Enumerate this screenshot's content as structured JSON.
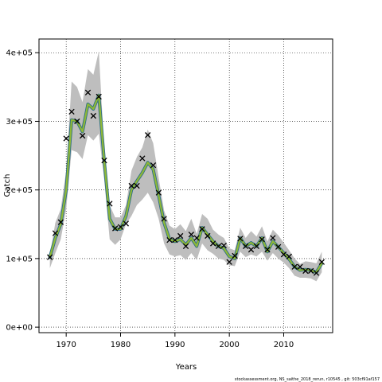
{
  "chart_data": {
    "type": "line",
    "title": "",
    "xlabel": "Years",
    "ylabel": "Catch",
    "xlim": [
      1965,
      2019
    ],
    "ylim": [
      -8000,
      420000
    ],
    "x_ticks": [
      1970,
      1980,
      1990,
      2000,
      2010
    ],
    "x_tick_labels": [
      "1970",
      "1980",
      "1990",
      "2000",
      "2010"
    ],
    "y_ticks": [
      0,
      100000,
      200000,
      300000,
      400000
    ],
    "y_tick_labels": [
      "0e+00",
      "1e+05",
      "2e+05",
      "3e+05",
      "4e+05"
    ],
    "grid": true,
    "years": [
      1967,
      1968,
      1969,
      1970,
      1971,
      1972,
      1973,
      1974,
      1975,
      1976,
      1977,
      1978,
      1979,
      1980,
      1981,
      1982,
      1983,
      1984,
      1985,
      1986,
      1987,
      1988,
      1989,
      1990,
      1991,
      1992,
      1993,
      1994,
      1995,
      1996,
      1997,
      1998,
      1999,
      2000,
      2001,
      2002,
      2003,
      2004,
      2005,
      2006,
      2007,
      2008,
      2009,
      2010,
      2011,
      2012,
      2013,
      2014,
      2015,
      2016,
      2017
    ],
    "series": [
      {
        "type": "band",
        "color": "#bebebe",
        "upper": [
          105000,
          152000,
          172000,
          228000,
          358000,
          350000,
          328000,
          376000,
          368000,
          402000,
          258000,
          178000,
          160000,
          160000,
          178000,
          228000,
          248000,
          262000,
          288000,
          268000,
          218000,
          170000,
          148000,
          143000,
          150000,
          140000,
          158000,
          136000,
          165000,
          158000,
          142000,
          135000,
          130000,
          115000,
          112000,
          145000,
          130000,
          140000,
          132000,
          147000,
          125000,
          142000,
          134000,
          123000,
          112000,
          100000,
          92000,
          96000,
          95000,
          93000,
          110000
        ]
      },
      {
        "type": "band",
        "color": "#bebebe",
        "lower": [
          86000,
          108000,
          128000,
          172000,
          258000,
          255000,
          245000,
          280000,
          272000,
          282000,
          215000,
          128000,
          120000,
          128000,
          150000,
          162000,
          178000,
          186000,
          196000,
          182000,
          158000,
          122000,
          106000,
          103000,
          105000,
          98000,
          108000,
          98000,
          122000,
          112000,
          107000,
          100000,
          98000,
          90000,
          89000,
          110000,
          102000,
          106000,
          103000,
          110000,
          97000,
          108000,
          100000,
          94000,
          86000,
          75000,
          72000,
          72000,
          71000,
          67000,
          80000
        ]
      },
      {
        "type": "line",
        "color": "#8fb936",
        "values": [
          102000,
          130000,
          150000,
          200000,
          302000,
          300000,
          285000,
          325000,
          318000,
          338000,
          242000,
          158000,
          143000,
          143000,
          162000,
          200000,
          213000,
          225000,
          240000,
          230000,
          192000,
          152000,
          128000,
          125000,
          128000,
          120000,
          130000,
          118000,
          145000,
          135000,
          125000,
          118000,
          115000,
          103000,
          100000,
          130000,
          118000,
          123000,
          118000,
          130000,
          110000,
          125000,
          117000,
          108000,
          99000,
          88000,
          83000,
          84000,
          83000,
          80000,
          93000
        ]
      },
      {
        "type": "points",
        "marker": "x",
        "color": "#000000",
        "values": [
          102000,
          137000,
          153000,
          275000,
          314000,
          300000,
          279000,
          342000,
          308000,
          336000,
          243000,
          180000,
          144000,
          146000,
          151000,
          206000,
          206000,
          246000,
          280000,
          236000,
          196000,
          158000,
          127000,
          127000,
          133000,
          118000,
          135000,
          130000,
          143000,
          133000,
          122000,
          118000,
          119000,
          95000,
          104000,
          129000,
          118000,
          113000,
          118000,
          128000,
          113000,
          130000,
          117000,
          106000,
          103000,
          88000,
          88000,
          82000,
          82000,
          79000,
          95000
        ]
      }
    ]
  },
  "footer_text": "stockassessment.org,  NS_saithe_2018_rerun,  r10545 ,  git: 503cf91af157"
}
